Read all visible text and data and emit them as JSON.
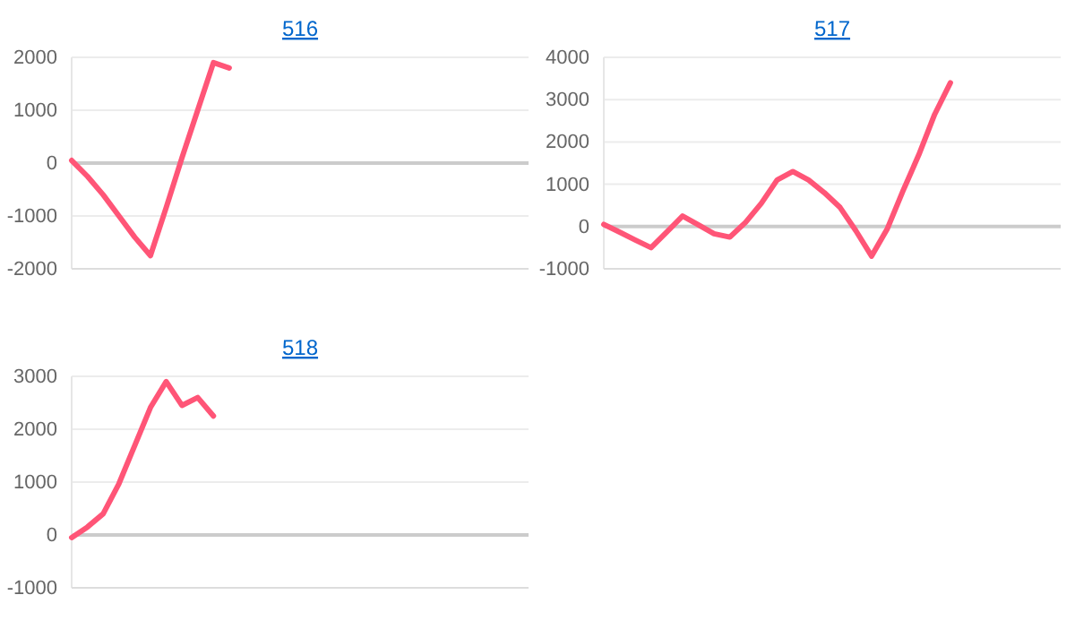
{
  "chart_data": [
    {
      "type": "line",
      "title": "516",
      "categories": [
        null,
        null,
        null,
        null,
        null,
        null,
        null,
        null,
        null,
        null,
        null,
        null,
        null,
        null,
        null,
        null,
        null,
        null,
        null,
        null,
        null,
        null,
        null,
        null,
        null,
        null,
        null,
        null,
        null,
        null
      ],
      "series": [
        {
          "color": "#ff5577",
          "values": [
            50,
            -250,
            -600,
            -1000,
            -1400,
            -1750,
            -840,
            100,
            1000,
            1900,
            1800,
            null,
            null,
            null,
            null,
            null,
            null,
            null,
            null,
            null,
            null,
            null,
            null,
            null,
            null,
            null,
            null,
            null,
            null,
            null
          ]
        }
      ],
      "ylim": [
        -2000,
        2000
      ],
      "yticks": [
        -2000,
        -1000,
        0,
        1000,
        2000
      ],
      "grid": "y",
      "tick_labels": "y",
      "marker": "none",
      "line_style": "solid"
    },
    {
      "type": "line",
      "title": "517",
      "categories": [
        null,
        null,
        null,
        null,
        null,
        null,
        null,
        null,
        null,
        null,
        null,
        null,
        null,
        null,
        null,
        null,
        null,
        null,
        null,
        null,
        null,
        null,
        null,
        null,
        null,
        null,
        null,
        null,
        null,
        null
      ],
      "series": [
        {
          "color": "#ff5577",
          "values": [
            50,
            -130,
            -320,
            -500,
            -130,
            250,
            40,
            -170,
            -250,
            100,
            550,
            1100,
            1300,
            1100,
            800,
            450,
            -100,
            -700,
            -50,
            850,
            1700,
            2650,
            3400,
            null,
            null,
            null,
            null,
            null,
            null,
            null
          ]
        }
      ],
      "ylim": [
        -1000,
        4000
      ],
      "yticks": [
        -1000,
        0,
        1000,
        2000,
        3000,
        4000
      ],
      "grid": "y",
      "tick_labels": "y",
      "marker": "none",
      "line_style": "solid"
    },
    {
      "type": "line",
      "title": "518",
      "categories": [
        null,
        null,
        null,
        null,
        null,
        null,
        null,
        null,
        null,
        null,
        null,
        null,
        null,
        null,
        null,
        null,
        null,
        null,
        null,
        null,
        null,
        null,
        null,
        null,
        null,
        null,
        null,
        null,
        null,
        null
      ],
      "series": [
        {
          "color": "#ff5577",
          "values": [
            -50,
            150,
            400,
            970,
            1690,
            2410,
            2900,
            2450,
            2600,
            2250,
            null,
            null,
            null,
            null,
            null,
            null,
            null,
            null,
            null,
            null,
            null,
            null,
            null,
            null,
            null,
            null,
            null,
            null,
            null,
            null
          ]
        }
      ],
      "ylim": [
        -1000,
        3000
      ],
      "yticks": [
        -1000,
        0,
        1000,
        2000,
        3000
      ],
      "grid": "y",
      "tick_labels": "y",
      "marker": "none",
      "line_style": "solid"
    }
  ]
}
